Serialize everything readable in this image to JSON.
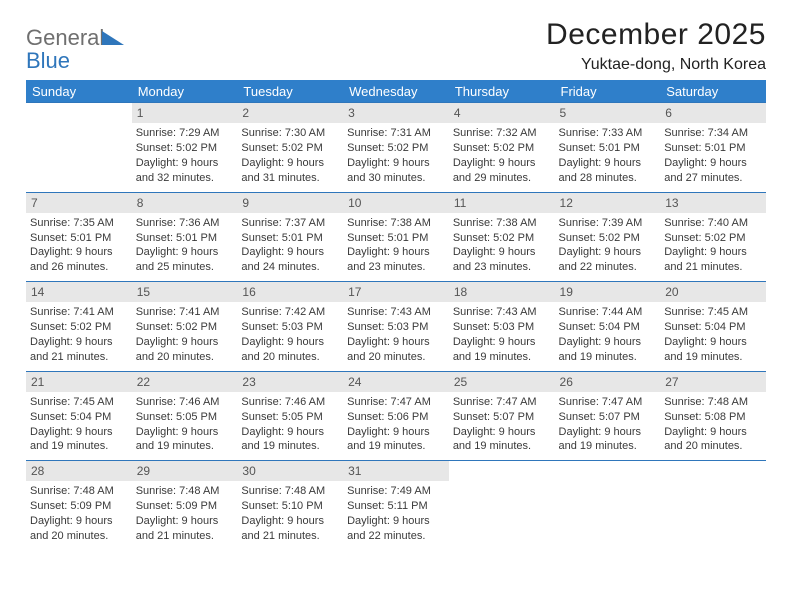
{
  "logo": {
    "line1": "General",
    "line2": "Blue"
  },
  "title": {
    "month": "December 2025",
    "location": "Yuktae-dong, North Korea"
  },
  "colors": {
    "accent": "#2f7fca",
    "accent_border": "#2f76bb",
    "daybar": "#e7e7e7",
    "text": "#3a3a3a",
    "logo_gray": "#6f6f6f"
  },
  "weekdays": [
    "Sunday",
    "Monday",
    "Tuesday",
    "Wednesday",
    "Thursday",
    "Friday",
    "Saturday"
  ],
  "weeks": [
    [
      null,
      {
        "n": "1",
        "sr": "7:29 AM",
        "ss": "5:02 PM",
        "dl": "Daylight: 9 hours and 32 minutes."
      },
      {
        "n": "2",
        "sr": "7:30 AM",
        "ss": "5:02 PM",
        "dl": "Daylight: 9 hours and 31 minutes."
      },
      {
        "n": "3",
        "sr": "7:31 AM",
        "ss": "5:02 PM",
        "dl": "Daylight: 9 hours and 30 minutes."
      },
      {
        "n": "4",
        "sr": "7:32 AM",
        "ss": "5:02 PM",
        "dl": "Daylight: 9 hours and 29 minutes."
      },
      {
        "n": "5",
        "sr": "7:33 AM",
        "ss": "5:01 PM",
        "dl": "Daylight: 9 hours and 28 minutes."
      },
      {
        "n": "6",
        "sr": "7:34 AM",
        "ss": "5:01 PM",
        "dl": "Daylight: 9 hours and 27 minutes."
      }
    ],
    [
      {
        "n": "7",
        "sr": "7:35 AM",
        "ss": "5:01 PM",
        "dl": "Daylight: 9 hours and 26 minutes."
      },
      {
        "n": "8",
        "sr": "7:36 AM",
        "ss": "5:01 PM",
        "dl": "Daylight: 9 hours and 25 minutes."
      },
      {
        "n": "9",
        "sr": "7:37 AM",
        "ss": "5:01 PM",
        "dl": "Daylight: 9 hours and 24 minutes."
      },
      {
        "n": "10",
        "sr": "7:38 AM",
        "ss": "5:01 PM",
        "dl": "Daylight: 9 hours and 23 minutes."
      },
      {
        "n": "11",
        "sr": "7:38 AM",
        "ss": "5:02 PM",
        "dl": "Daylight: 9 hours and 23 minutes."
      },
      {
        "n": "12",
        "sr": "7:39 AM",
        "ss": "5:02 PM",
        "dl": "Daylight: 9 hours and 22 minutes."
      },
      {
        "n": "13",
        "sr": "7:40 AM",
        "ss": "5:02 PM",
        "dl": "Daylight: 9 hours and 21 minutes."
      }
    ],
    [
      {
        "n": "14",
        "sr": "7:41 AM",
        "ss": "5:02 PM",
        "dl": "Daylight: 9 hours and 21 minutes."
      },
      {
        "n": "15",
        "sr": "7:41 AM",
        "ss": "5:02 PM",
        "dl": "Daylight: 9 hours and 20 minutes."
      },
      {
        "n": "16",
        "sr": "7:42 AM",
        "ss": "5:03 PM",
        "dl": "Daylight: 9 hours and 20 minutes."
      },
      {
        "n": "17",
        "sr": "7:43 AM",
        "ss": "5:03 PM",
        "dl": "Daylight: 9 hours and 20 minutes."
      },
      {
        "n": "18",
        "sr": "7:43 AM",
        "ss": "5:03 PM",
        "dl": "Daylight: 9 hours and 19 minutes."
      },
      {
        "n": "19",
        "sr": "7:44 AM",
        "ss": "5:04 PM",
        "dl": "Daylight: 9 hours and 19 minutes."
      },
      {
        "n": "20",
        "sr": "7:45 AM",
        "ss": "5:04 PM",
        "dl": "Daylight: 9 hours and 19 minutes."
      }
    ],
    [
      {
        "n": "21",
        "sr": "7:45 AM",
        "ss": "5:04 PM",
        "dl": "Daylight: 9 hours and 19 minutes."
      },
      {
        "n": "22",
        "sr": "7:46 AM",
        "ss": "5:05 PM",
        "dl": "Daylight: 9 hours and 19 minutes."
      },
      {
        "n": "23",
        "sr": "7:46 AM",
        "ss": "5:05 PM",
        "dl": "Daylight: 9 hours and 19 minutes."
      },
      {
        "n": "24",
        "sr": "7:47 AM",
        "ss": "5:06 PM",
        "dl": "Daylight: 9 hours and 19 minutes."
      },
      {
        "n": "25",
        "sr": "7:47 AM",
        "ss": "5:07 PM",
        "dl": "Daylight: 9 hours and 19 minutes."
      },
      {
        "n": "26",
        "sr": "7:47 AM",
        "ss": "5:07 PM",
        "dl": "Daylight: 9 hours and 19 minutes."
      },
      {
        "n": "27",
        "sr": "7:48 AM",
        "ss": "5:08 PM",
        "dl": "Daylight: 9 hours and 20 minutes."
      }
    ],
    [
      {
        "n": "28",
        "sr": "7:48 AM",
        "ss": "5:09 PM",
        "dl": "Daylight: 9 hours and 20 minutes."
      },
      {
        "n": "29",
        "sr": "7:48 AM",
        "ss": "5:09 PM",
        "dl": "Daylight: 9 hours and 21 minutes."
      },
      {
        "n": "30",
        "sr": "7:48 AM",
        "ss": "5:10 PM",
        "dl": "Daylight: 9 hours and 21 minutes."
      },
      {
        "n": "31",
        "sr": "7:49 AM",
        "ss": "5:11 PM",
        "dl": "Daylight: 9 hours and 22 minutes."
      },
      null,
      null,
      null
    ]
  ]
}
